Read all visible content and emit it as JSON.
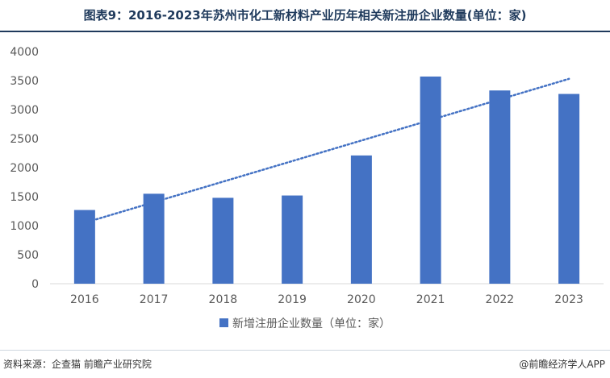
{
  "title": "图表9：2016-2023年苏州市化工新材料产业历年相关新注册企业数量(单位：家)",
  "source": "资料来源：企查猫 前瞻产业研究院",
  "brand": "@前瞻经济学人APP",
  "colors": {
    "bar": "#4472C4",
    "trend": "#4472C4",
    "title": "#1f3a5c",
    "axis_text": "#595959"
  },
  "chart_data": {
    "type": "bar",
    "categories": [
      "2016",
      "2017",
      "2018",
      "2019",
      "2020",
      "2021",
      "2022",
      "2023"
    ],
    "series": [
      {
        "name": "新增注册企业数量（单位：家）",
        "values": [
          1270,
          1550,
          1480,
          1520,
          2210,
          3570,
          3330,
          3270
        ]
      }
    ],
    "trendline": {
      "type": "linear",
      "style": "dotted",
      "from": 1050,
      "to": 3530
    },
    "ylim": [
      0,
      4000
    ],
    "yticks": [
      "0",
      "500",
      "1000",
      "1500",
      "2000",
      "2500",
      "3000",
      "3500",
      "4000"
    ],
    "grid": false,
    "legend": "bottom-center"
  }
}
